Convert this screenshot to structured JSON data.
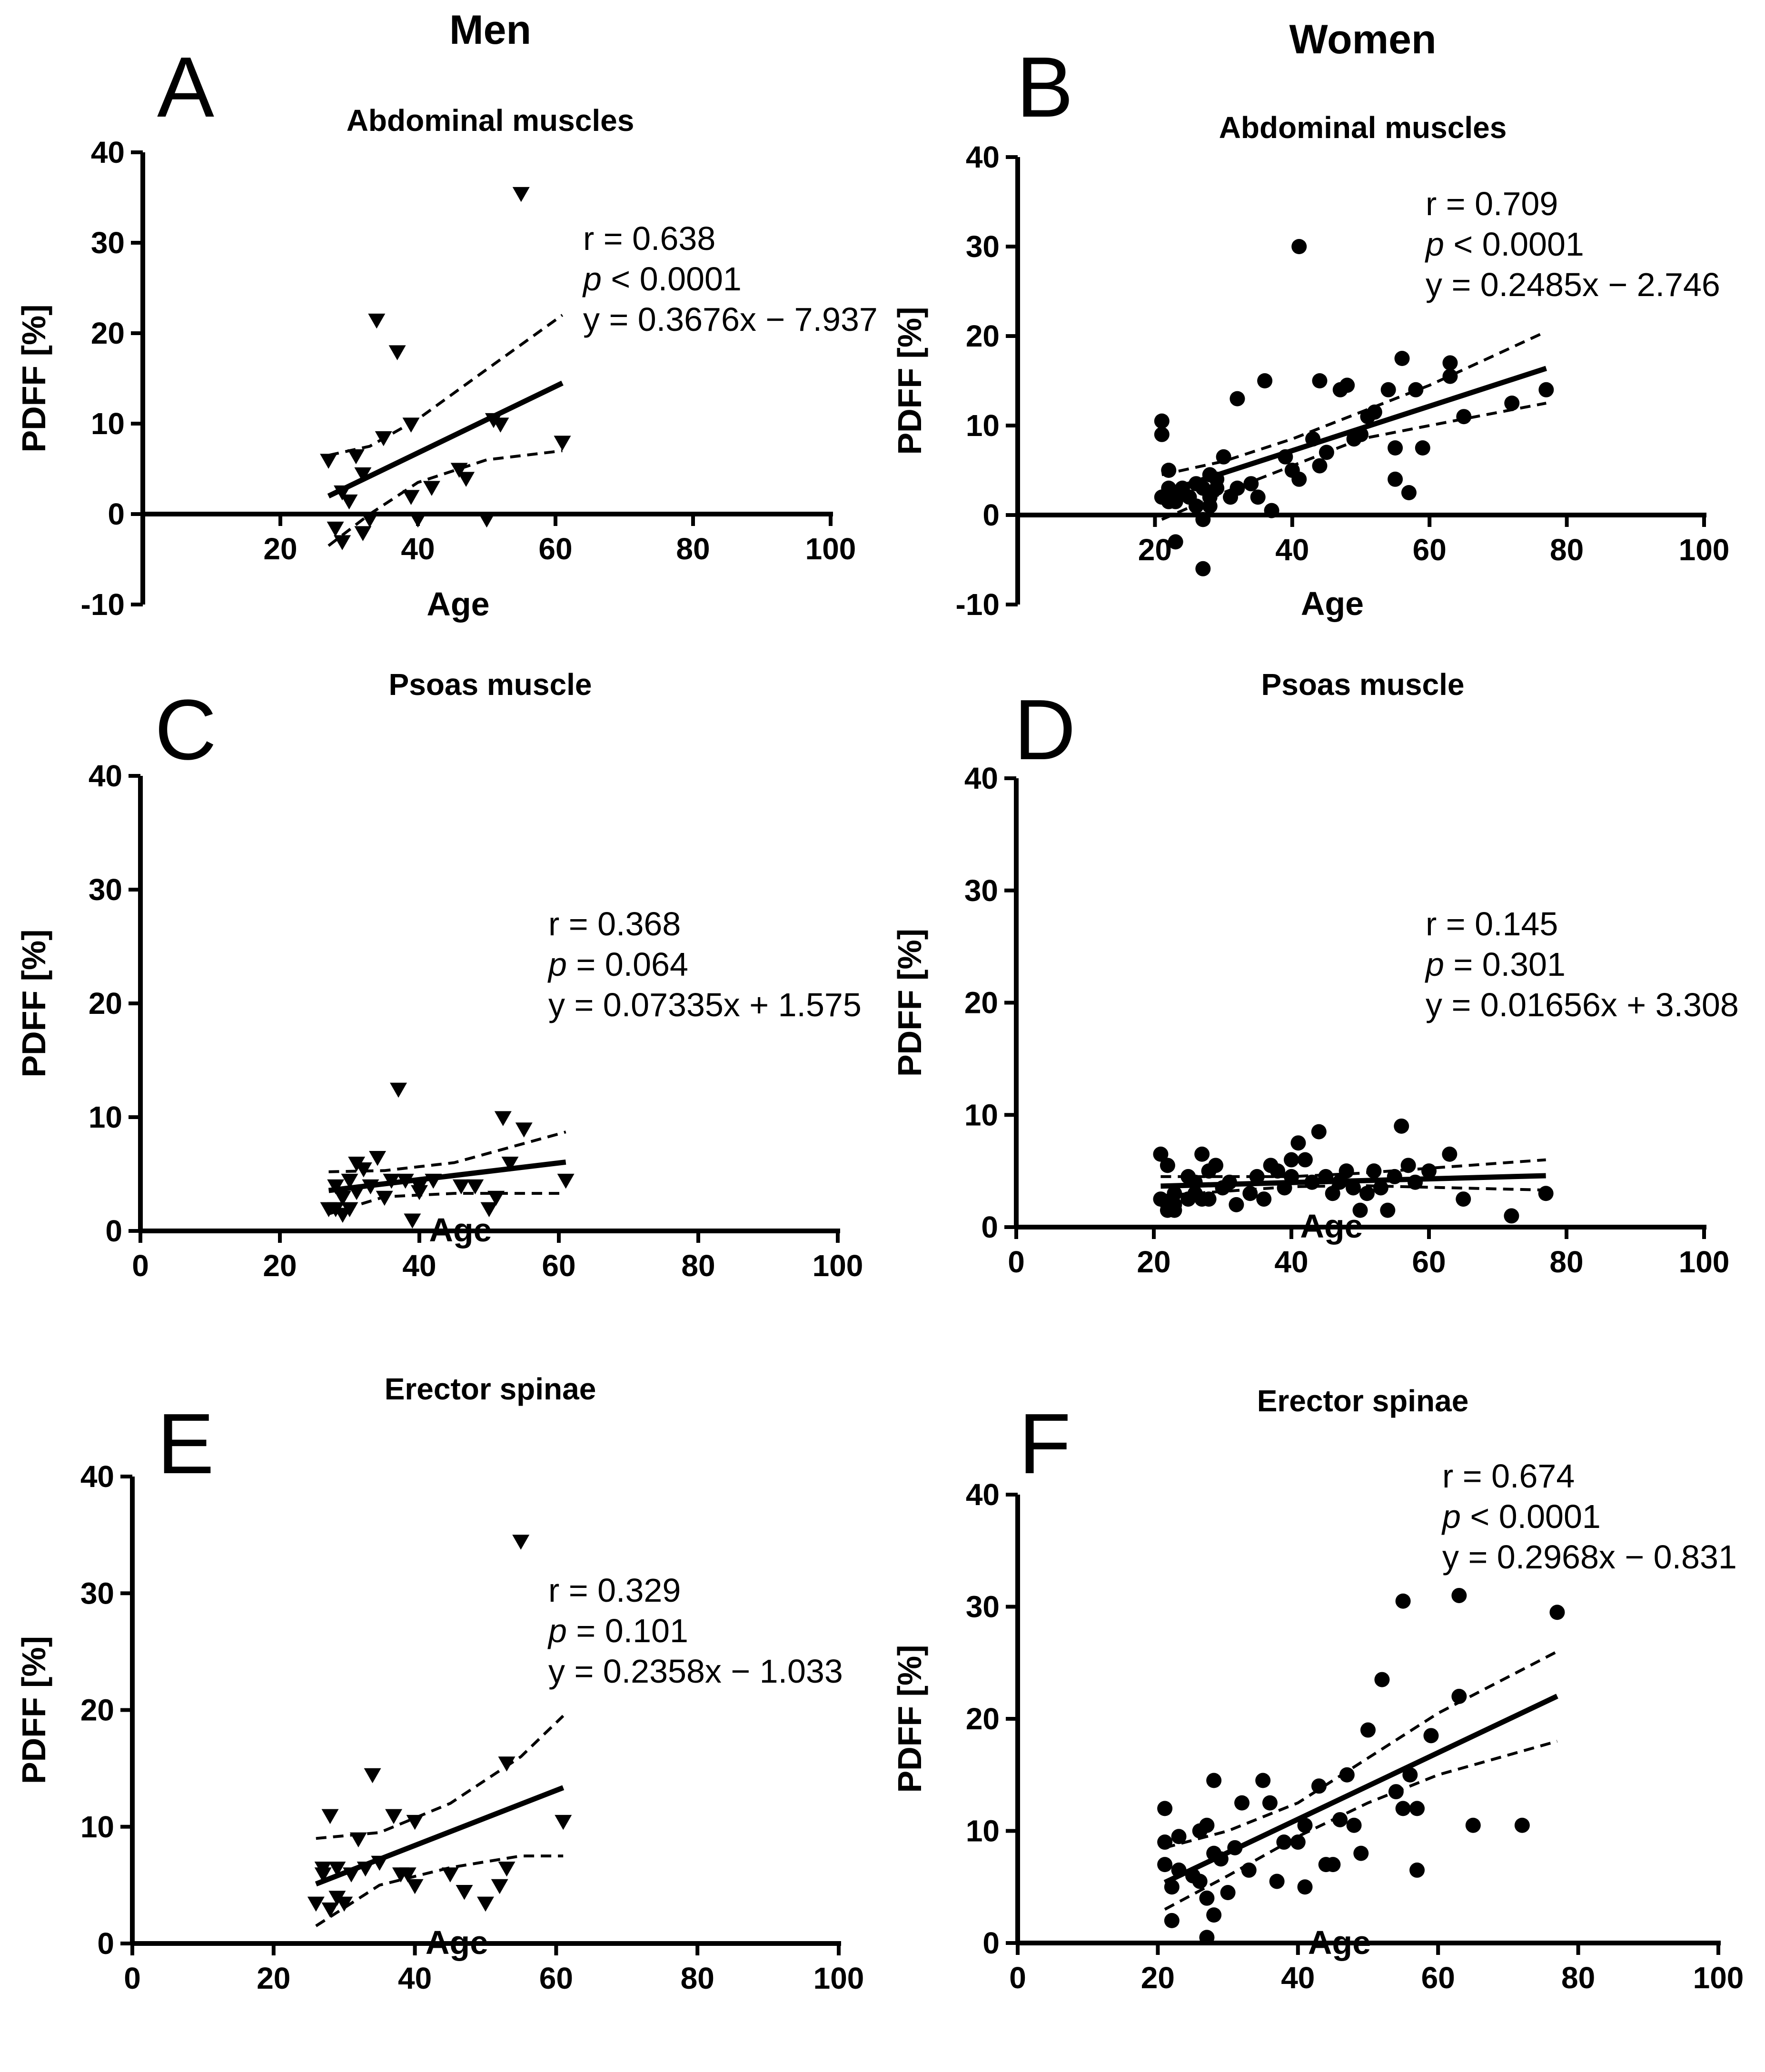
{
  "column_titles": {
    "men": "Men",
    "women": "Women"
  },
  "colors": {
    "ink": "#000000",
    "background": "#ffffff"
  },
  "chart_data": [
    {
      "panel": "A",
      "column": "Men",
      "type": "scatter",
      "title": "Abdominal muscles",
      "xlabel": "Age",
      "ylabel": "PDFF  [%]",
      "xlim": [
        0,
        100
      ],
      "ylim": [
        -10,
        40
      ],
      "xticks": [
        "20",
        "40",
        "60",
        "80",
        "100"
      ],
      "yticks": [
        "-10",
        "0",
        "10",
        "20",
        "30",
        "40"
      ],
      "marker": "triangle-down",
      "stats": {
        "r": "r = 0.638",
        "p": "< 0.0001",
        "eq": "y = 0.3676x − 7.937"
      },
      "regression": {
        "slope": 0.3676,
        "intercept": -7.937,
        "x_range": [
          27,
          61
        ]
      },
      "ci_upper": [
        [
          27,
          6.5
        ],
        [
          33,
          7.5
        ],
        [
          40,
          10.5
        ],
        [
          50,
          16
        ],
        [
          61,
          22
        ]
      ],
      "ci_lower": [
        [
          27,
          -3.5
        ],
        [
          33,
          0
        ],
        [
          40,
          3.5
        ],
        [
          50,
          6
        ],
        [
          61,
          7
        ]
      ],
      "points": [
        [
          27,
          6
        ],
        [
          28,
          -1.5
        ],
        [
          29,
          2.5
        ],
        [
          29,
          -3
        ],
        [
          30,
          1.5
        ],
        [
          31,
          6.5
        ],
        [
          32,
          4.5
        ],
        [
          32,
          -2
        ],
        [
          33,
          -0.5
        ],
        [
          34,
          21.5
        ],
        [
          35,
          8.5
        ],
        [
          37,
          18
        ],
        [
          39,
          10
        ],
        [
          39,
          2
        ],
        [
          40,
          -0.5
        ],
        [
          42,
          3
        ],
        [
          46,
          5
        ],
        [
          47,
          4
        ],
        [
          50,
          -0.5
        ],
        [
          51,
          10.5
        ],
        [
          52,
          10
        ],
        [
          55,
          35.5
        ],
        [
          61,
          8
        ]
      ]
    },
    {
      "panel": "B",
      "column": "Women",
      "type": "scatter",
      "title": "Abdominal muscles",
      "xlabel": "Age",
      "ylabel": "PDFF  [%]",
      "xlim": [
        0,
        100
      ],
      "ylim": [
        -10,
        40
      ],
      "xticks": [
        "20",
        "40",
        "60",
        "80",
        "100"
      ],
      "yticks": [
        "-10",
        "0",
        "10",
        "20",
        "30",
        "40"
      ],
      "marker": "circle",
      "stats": {
        "r": "r = 0.709",
        "p": "< 0.0001",
        "eq": "y = 0.2485x − 2.746"
      },
      "regression": {
        "slope": 0.2485,
        "intercept": -2.746,
        "x_range": [
          21,
          77
        ]
      },
      "ci_upper": [
        [
          21,
          4.5
        ],
        [
          30,
          6
        ],
        [
          40,
          8.5
        ],
        [
          50,
          11.5
        ],
        [
          60,
          14.5
        ],
        [
          77,
          20.5
        ]
      ],
      "ci_lower": [
        [
          21,
          -0.5
        ],
        [
          30,
          2.5
        ],
        [
          40,
          5.5
        ],
        [
          50,
          8.5
        ],
        [
          60,
          10
        ],
        [
          77,
          12.5
        ]
      ],
      "points": [
        [
          21,
          10.5
        ],
        [
          21,
          9
        ],
        [
          21,
          2
        ],
        [
          22,
          5
        ],
        [
          22,
          3
        ],
        [
          22,
          1.5
        ],
        [
          23,
          2.5
        ],
        [
          23,
          1.5
        ],
        [
          23,
          -3
        ],
        [
          24,
          3
        ],
        [
          25,
          2
        ],
        [
          26,
          1
        ],
        [
          26,
          3.5
        ],
        [
          27,
          -0.5
        ],
        [
          27,
          3
        ],
        [
          27,
          -6
        ],
        [
          28,
          4.5
        ],
        [
          28,
          2
        ],
        [
          28,
          1
        ],
        [
          29,
          3
        ],
        [
          29,
          4
        ],
        [
          30,
          6.5
        ],
        [
          31,
          2
        ],
        [
          32,
          3
        ],
        [
          32,
          13
        ],
        [
          34,
          3.5
        ],
        [
          35,
          2
        ],
        [
          36,
          15
        ],
        [
          37,
          0.5
        ],
        [
          39,
          6.5
        ],
        [
          40,
          5
        ],
        [
          41,
          30
        ],
        [
          41,
          4
        ],
        [
          43,
          8.5
        ],
        [
          44,
          15
        ],
        [
          44,
          5.5
        ],
        [
          45,
          7
        ],
        [
          47,
          14
        ],
        [
          48,
          14.5
        ],
        [
          49,
          8.5
        ],
        [
          50,
          9
        ],
        [
          51,
          11
        ],
        [
          52,
          11.5
        ],
        [
          54,
          14
        ],
        [
          55,
          7.5
        ],
        [
          55,
          4
        ],
        [
          56,
          17.5
        ],
        [
          57,
          2.5
        ],
        [
          58,
          14
        ],
        [
          59,
          7.5
        ],
        [
          63,
          17
        ],
        [
          63,
          15.5
        ],
        [
          65,
          11
        ],
        [
          72,
          12.5
        ],
        [
          77,
          14
        ]
      ]
    },
    {
      "panel": "C",
      "column": "Men",
      "type": "scatter",
      "title": "Psoas muscle",
      "xlabel": "Age",
      "ylabel": "PDFF  [%]",
      "xlim": [
        0,
        100
      ],
      "ylim": [
        0,
        40
      ],
      "xticks": [
        "0",
        "20",
        "40",
        "60",
        "80",
        "100"
      ],
      "yticks": [
        "0",
        "10",
        "20",
        "30",
        "40"
      ],
      "marker": "triangle-down",
      "stats": {
        "r": "r = 0.368",
        "p": "= 0.064",
        "eq": "y = 0.07335x + 1.575"
      },
      "regression": {
        "slope": 0.07335,
        "intercept": 1.575,
        "x_range": [
          27,
          61
        ]
      },
      "ci_upper": [
        [
          27,
          5.2
        ],
        [
          35,
          5.3
        ],
        [
          45,
          6
        ],
        [
          61,
          8.7
        ]
      ],
      "ci_lower": [
        [
          27,
          1.5
        ],
        [
          35,
          3
        ],
        [
          45,
          3.3
        ],
        [
          61,
          3.3
        ]
      ],
      "points": [
        [
          27,
          2
        ],
        [
          28,
          4
        ],
        [
          28,
          2
        ],
        [
          29,
          1.5
        ],
        [
          29,
          3
        ],
        [
          30,
          2
        ],
        [
          30,
          4.5
        ],
        [
          31,
          6
        ],
        [
          31,
          3.5
        ],
        [
          32,
          5.5
        ],
        [
          33,
          4
        ],
        [
          34,
          6.5
        ],
        [
          35,
          3
        ],
        [
          36,
          4.5
        ],
        [
          37,
          12.5
        ],
        [
          38,
          4.5
        ],
        [
          39,
          1
        ],
        [
          40,
          4
        ],
        [
          40,
          3.5
        ],
        [
          42,
          4.5
        ],
        [
          46,
          4
        ],
        [
          48,
          4
        ],
        [
          50,
          2
        ],
        [
          51,
          3
        ],
        [
          52,
          10
        ],
        [
          53,
          6
        ],
        [
          55,
          9
        ],
        [
          61,
          4.5
        ]
      ]
    },
    {
      "panel": "D",
      "column": "Women",
      "type": "scatter",
      "title": "Psoas muscle",
      "xlabel": "Age",
      "ylabel": "PDFF  [%]",
      "xlim": [
        0,
        100
      ],
      "ylim": [
        0,
        40
      ],
      "xticks": [
        "0",
        "20",
        "40",
        "60",
        "80",
        "100"
      ],
      "yticks": [
        "0",
        "10",
        "20",
        "30",
        "40"
      ],
      "marker": "circle",
      "stats": {
        "r": "r = 0.145",
        "p": "= 0.301",
        "eq": "y = 0.01656x + 3.308"
      },
      "regression": {
        "slope": 0.01656,
        "intercept": 3.308,
        "x_range": [
          21,
          77
        ]
      },
      "ci_upper": [
        [
          21,
          4.5
        ],
        [
          40,
          4.5
        ],
        [
          50,
          4.8
        ],
        [
          77,
          6
        ]
      ],
      "ci_lower": [
        [
          21,
          2.8
        ],
        [
          40,
          3.6
        ],
        [
          50,
          3.7
        ],
        [
          77,
          3.3
        ]
      ],
      "points": [
        [
          21,
          6.5
        ],
        [
          21,
          2.5
        ],
        [
          22,
          2
        ],
        [
          22,
          1.5
        ],
        [
          22,
          5.5
        ],
        [
          23,
          2
        ],
        [
          23,
          1.5
        ],
        [
          23,
          3
        ],
        [
          25,
          2.5
        ],
        [
          25,
          4.5
        ],
        [
          26,
          4
        ],
        [
          26,
          3
        ],
        [
          27,
          6.5
        ],
        [
          27,
          2.5
        ],
        [
          28,
          5
        ],
        [
          28,
          2.5
        ],
        [
          29,
          5.5
        ],
        [
          30,
          3.5
        ],
        [
          31,
          4
        ],
        [
          32,
          2
        ],
        [
          34,
          3
        ],
        [
          35,
          4.5
        ],
        [
          36,
          2.5
        ],
        [
          37,
          5.5
        ],
        [
          38,
          5
        ],
        [
          39,
          3.5
        ],
        [
          40,
          6
        ],
        [
          40,
          4.5
        ],
        [
          41,
          7.5
        ],
        [
          42,
          6
        ],
        [
          43,
          4
        ],
        [
          44,
          8.5
        ],
        [
          45,
          4.5
        ],
        [
          46,
          3
        ],
        [
          47,
          4
        ],
        [
          48,
          5
        ],
        [
          49,
          3.5
        ],
        [
          50,
          1.5
        ],
        [
          51,
          3
        ],
        [
          52,
          5
        ],
        [
          53,
          3.5
        ],
        [
          54,
          1.5
        ],
        [
          55,
          4.5
        ],
        [
          56,
          9
        ],
        [
          57,
          5.5
        ],
        [
          58,
          4
        ],
        [
          60,
          5
        ],
        [
          63,
          6.5
        ],
        [
          65,
          2.5
        ],
        [
          72,
          1
        ],
        [
          77,
          3
        ]
      ]
    },
    {
      "panel": "E",
      "column": "Men",
      "type": "scatter",
      "title": "Erector spinae",
      "xlabel": "Age",
      "ylabel": "PDFF  [%]",
      "xlim": [
        0,
        100
      ],
      "ylim": [
        0,
        40
      ],
      "xticks": [
        "0",
        "20",
        "40",
        "60",
        "80",
        "100"
      ],
      "yticks": [
        "0",
        "10",
        "20",
        "30",
        "40"
      ],
      "marker": "triangle-down",
      "stats": {
        "r": "r = 0.329",
        "p": "= 0.101",
        "eq": "y = 0.2358x − 1.033"
      },
      "regression": {
        "slope": 0.2358,
        "intercept": -1.033,
        "x_range": [
          26,
          61
        ]
      },
      "ci_upper": [
        [
          26,
          9
        ],
        [
          35,
          9.5
        ],
        [
          45,
          12
        ],
        [
          55,
          16
        ],
        [
          61,
          19.5
        ]
      ],
      "ci_lower": [
        [
          26,
          1.5
        ],
        [
          35,
          5
        ],
        [
          45,
          6.5
        ],
        [
          55,
          7.5
        ],
        [
          61,
          7.5
        ]
      ],
      "points": [
        [
          26,
          3.5
        ],
        [
          27,
          6.5
        ],
        [
          27,
          6
        ],
        [
          28,
          11
        ],
        [
          28,
          3
        ],
        [
          29,
          6.5
        ],
        [
          29,
          4
        ],
        [
          30,
          3.5
        ],
        [
          31,
          6
        ],
        [
          32,
          9
        ],
        [
          33,
          6.5
        ],
        [
          34,
          14.5
        ],
        [
          35,
          7
        ],
        [
          37,
          11
        ],
        [
          38,
          6
        ],
        [
          39,
          6
        ],
        [
          40,
          10.5
        ],
        [
          40,
          5
        ],
        [
          45,
          6
        ],
        [
          47,
          4.5
        ],
        [
          50,
          3.5
        ],
        [
          52,
          5
        ],
        [
          53,
          15.5
        ],
        [
          55,
          34.5
        ],
        [
          53,
          6.5
        ],
        [
          61,
          10.5
        ]
      ]
    },
    {
      "panel": "F",
      "column": "Women",
      "type": "scatter",
      "title": "Erector spinae",
      "xlabel": "Age",
      "ylabel": "PDFF  [%]",
      "xlim": [
        0,
        100
      ],
      "ylim": [
        0,
        40
      ],
      "xticks": [
        "0",
        "20",
        "40",
        "60",
        "80",
        "100"
      ],
      "yticks": [
        "0",
        "10",
        "20",
        "30",
        "40"
      ],
      "marker": "circle",
      "stats": {
        "r": "r = 0.674",
        "p": "< 0.0001",
        "eq": "y = 0.2968x − 0.831"
      },
      "regression": {
        "slope": 0.2968,
        "intercept": -0.831,
        "x_range": [
          21,
          77
        ]
      },
      "ci_upper": [
        [
          21,
          8.5
        ],
        [
          30,
          10
        ],
        [
          40,
          12.5
        ],
        [
          50,
          16.5
        ],
        [
          60,
          20.5
        ],
        [
          77,
          26
        ]
      ],
      "ci_lower": [
        [
          21,
          3
        ],
        [
          30,
          6
        ],
        [
          40,
          9.5
        ],
        [
          50,
          12.5
        ],
        [
          60,
          15
        ],
        [
          77,
          18
        ]
      ],
      "points": [
        [
          21,
          12
        ],
        [
          21,
          9
        ],
        [
          21,
          7
        ],
        [
          22,
          2
        ],
        [
          22,
          5
        ],
        [
          23,
          9.5
        ],
        [
          23,
          6.5
        ],
        [
          25,
          6
        ],
        [
          26,
          10
        ],
        [
          26,
          5.5
        ],
        [
          27,
          10.5
        ],
        [
          27,
          4
        ],
        [
          27,
          0.5
        ],
        [
          28,
          14.5
        ],
        [
          28,
          8
        ],
        [
          28,
          2.5
        ],
        [
          29,
          7.5
        ],
        [
          30,
          4.5
        ],
        [
          31,
          8.5
        ],
        [
          32,
          12.5
        ],
        [
          33,
          6.5
        ],
        [
          35,
          14.5
        ],
        [
          36,
          12.5
        ],
        [
          37,
          5.5
        ],
        [
          38,
          9
        ],
        [
          40,
          9
        ],
        [
          41,
          10.5
        ],
        [
          41,
          5
        ],
        [
          43,
          14
        ],
        [
          44,
          7
        ],
        [
          45,
          7
        ],
        [
          46,
          11
        ],
        [
          47,
          15
        ],
        [
          48,
          10.5
        ],
        [
          49,
          8
        ],
        [
          50,
          19
        ],
        [
          52,
          23.5
        ],
        [
          54,
          13.5
        ],
        [
          55,
          30.5
        ],
        [
          55,
          12
        ],
        [
          56,
          15
        ],
        [
          57,
          6.5
        ],
        [
          57,
          12
        ],
        [
          59,
          18.5
        ],
        [
          63,
          22
        ],
        [
          63,
          31
        ],
        [
          65,
          10.5
        ],
        [
          72,
          10.5
        ],
        [
          77,
          29.5
        ]
      ]
    }
  ]
}
